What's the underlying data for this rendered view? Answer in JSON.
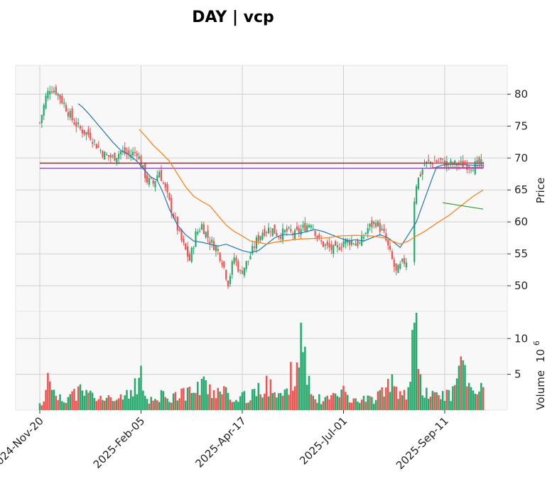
{
  "chart_data": {
    "type": "candlestick",
    "title": "DAY | vcp",
    "price_panel": {
      "ylabel": "Price",
      "yticks": [
        50,
        55,
        60,
        65,
        70,
        75,
        80
      ],
      "ylim": [
        46,
        84.5
      ],
      "grid": true
    },
    "volume_panel": {
      "ylabel": "Volume",
      "exponent_label": "10",
      "exponent_power": "6",
      "yticks": [
        5,
        10
      ],
      "ylim": [
        0,
        13.8
      ],
      "grid": true
    },
    "x_tick_labels": [
      "2024-Nov-20",
      "2025-Feb-05",
      "2025-Apr-17",
      "2025-Jul-01",
      "2025-Sep-11"
    ],
    "x_tick_index": [
      0,
      50,
      100,
      150,
      200
    ],
    "n_bars": 220,
    "closes_sampled": [
      [
        0,
        75.5
      ],
      [
        3,
        79.5
      ],
      [
        5,
        81.0
      ],
      [
        8,
        80.5
      ],
      [
        12,
        78.5
      ],
      [
        16,
        76.0
      ],
      [
        20,
        74.5
      ],
      [
        25,
        73.5
      ],
      [
        28,
        72.0
      ],
      [
        32,
        70.5
      ],
      [
        36,
        70.0
      ],
      [
        40,
        71.0
      ],
      [
        44,
        70.5
      ],
      [
        48,
        71.0
      ],
      [
        50,
        69.0
      ],
      [
        53,
        66.5
      ],
      [
        56,
        66.0
      ],
      [
        59,
        68.0
      ],
      [
        62,
        65.0
      ],
      [
        66,
        61.0
      ],
      [
        70,
        57.0
      ],
      [
        74,
        54.0
      ],
      [
        77,
        58.0
      ],
      [
        80,
        59.5
      ],
      [
        84,
        57.0
      ],
      [
        87,
        56.0
      ],
      [
        90,
        54.0
      ],
      [
        93,
        50.5
      ],
      [
        96,
        54.5
      ],
      [
        99,
        52.0
      ],
      [
        103,
        54.0
      ],
      [
        107,
        57.0
      ],
      [
        110,
        58.5
      ],
      [
        114,
        59.0
      ],
      [
        118,
        58.0
      ],
      [
        122,
        58.5
      ],
      [
        126,
        58.0
      ],
      [
        130,
        59.0
      ],
      [
        134,
        60.0
      ],
      [
        138,
        57.0
      ],
      [
        142,
        56.0
      ],
      [
        146,
        55.5
      ],
      [
        150,
        57.0
      ],
      [
        154,
        57.0
      ],
      [
        158,
        56.5
      ],
      [
        162,
        59.0
      ],
      [
        166,
        60.0
      ],
      [
        170,
        58.0
      ],
      [
        173,
        55.0
      ],
      [
        176,
        52.0
      ],
      [
        179,
        53.5
      ],
      [
        181,
        54.0
      ],
      [
        186,
        66.0
      ],
      [
        190,
        69.0
      ],
      [
        194,
        69.5
      ],
      [
        198,
        69.5
      ],
      [
        202,
        69.0
      ],
      [
        206,
        69.0
      ],
      [
        210,
        69.0
      ],
      [
        214,
        68.8
      ],
      [
        218,
        69.0
      ],
      [
        219,
        68.8
      ]
    ],
    "gap_bars": [
      182,
      183,
      184
    ],
    "volume_sampled": [
      [
        2,
        1.2
      ],
      [
        4,
        5.2
      ],
      [
        8,
        2.0
      ],
      [
        10,
        2.2
      ],
      [
        20,
        3.6
      ],
      [
        30,
        2.0
      ],
      [
        40,
        2.2
      ],
      [
        50,
        6.2
      ],
      [
        52,
        2.0
      ],
      [
        60,
        2.8
      ],
      [
        70,
        3.0
      ],
      [
        81,
        4.7
      ],
      [
        92,
        3.2
      ],
      [
        100,
        2.5
      ],
      [
        105,
        2.9
      ],
      [
        112,
        4.8
      ],
      [
        114,
        4.3
      ],
      [
        120,
        2.0
      ],
      [
        129,
        12.2
      ],
      [
        135,
        2.0
      ],
      [
        145,
        2.4
      ],
      [
        150,
        3.4
      ],
      [
        160,
        2.0
      ],
      [
        168,
        2.8
      ],
      [
        174,
        5.0
      ],
      [
        182,
        3.2
      ],
      [
        184,
        11.2
      ],
      [
        186,
        13.6
      ],
      [
        188,
        5.0
      ],
      [
        195,
        2.5
      ],
      [
        205,
        3.5
      ],
      [
        208,
        7.5
      ],
      [
        210,
        6.3
      ],
      [
        212,
        3.8
      ],
      [
        216,
        2.2
      ],
      [
        218,
        3.8
      ],
      [
        219,
        3.2
      ]
    ],
    "moving_average_1": [
      [
        19,
        78.5
      ],
      [
        21,
        78.0
      ],
      [
        24,
        77.0
      ],
      [
        28,
        75.5
      ],
      [
        32,
        74.0
      ],
      [
        36,
        72.5
      ],
      [
        40,
        71.2
      ],
      [
        44,
        70.5
      ],
      [
        48,
        69.5
      ],
      [
        52,
        68.0
      ],
      [
        55,
        67.0
      ],
      [
        58,
        66.5
      ],
      [
        61,
        64.5
      ],
      [
        64,
        62.0
      ],
      [
        68,
        59.5
      ],
      [
        72,
        58.0
      ],
      [
        76,
        57.0
      ],
      [
        80,
        56.8
      ],
      [
        84,
        56.5
      ],
      [
        88,
        56.2
      ],
      [
        92,
        56.5
      ],
      [
        96,
        56.0
      ],
      [
        100,
        55.5
      ],
      [
        104,
        55.2
      ],
      [
        108,
        55.5
      ],
      [
        112,
        56.5
      ],
      [
        116,
        57.5
      ],
      [
        120,
        58.0
      ],
      [
        124,
        58.0
      ],
      [
        128,
        58.2
      ],
      [
        132,
        58.5
      ],
      [
        136,
        58.8
      ],
      [
        140,
        58.5
      ],
      [
        144,
        58.0
      ],
      [
        148,
        57.5
      ],
      [
        152,
        57.0
      ],
      [
        156,
        57.2
      ],
      [
        160,
        57.0
      ],
      [
        164,
        57.5
      ],
      [
        168,
        58.0
      ],
      [
        172,
        57.5
      ],
      [
        176,
        56.5
      ],
      [
        178,
        56.0
      ],
      [
        182,
        58.0
      ],
      [
        186,
        60.0
      ],
      [
        190,
        63.5
      ],
      [
        194,
        67.0
      ],
      [
        196,
        68.6
      ],
      [
        200,
        69.0
      ],
      [
        206,
        69.0
      ],
      [
        212,
        68.9
      ],
      [
        219,
        68.8
      ]
    ],
    "moving_average_2": [
      [
        49,
        74.5
      ],
      [
        52,
        73.5
      ],
      [
        56,
        72.0
      ],
      [
        60,
        70.8
      ],
      [
        64,
        69.5
      ],
      [
        68,
        67.5
      ],
      [
        72,
        65.5
      ],
      [
        76,
        64.0
      ],
      [
        80,
        63.2
      ],
      [
        84,
        62.5
      ],
      [
        88,
        61.0
      ],
      [
        92,
        59.5
      ],
      [
        96,
        58.5
      ],
      [
        100,
        57.8
      ],
      [
        104,
        57.0
      ],
      [
        108,
        56.8
      ],
      [
        112,
        56.5
      ],
      [
        116,
        56.8
      ],
      [
        120,
        57.0
      ],
      [
        128,
        57.3
      ],
      [
        136,
        57.4
      ],
      [
        142,
        57.5
      ],
      [
        148,
        57.8
      ],
      [
        156,
        57.9
      ],
      [
        164,
        57.8
      ],
      [
        170,
        57.5
      ],
      [
        174,
        57.0
      ],
      [
        178,
        56.5
      ],
      [
        182,
        57.0
      ],
      [
        186,
        57.8
      ],
      [
        190,
        58.5
      ],
      [
        196,
        59.8
      ],
      [
        202,
        61.0
      ],
      [
        208,
        62.5
      ],
      [
        214,
        64.0
      ],
      [
        219,
        65.0
      ]
    ],
    "trend_line": [
      [
        199,
        63.0
      ],
      [
        219,
        62.0
      ]
    ],
    "horizontal_levels": [
      {
        "y": 69.2,
        "color": "#b22222"
      },
      {
        "y": 68.4,
        "color": "#8a4fb5"
      }
    ],
    "consolidation_box": {
      "x0": 194,
      "x1": 219,
      "y0": 68.5,
      "y1": 69.2,
      "color": "#e23b7a"
    },
    "colors": {
      "up": "#26a96c",
      "down": "#ef5350",
      "ma1": "#1f77b4",
      "ma2": "#ff7f0e",
      "trend": "#2ca02c",
      "panel_bg": "#f7f7f7",
      "grid": "#d0d0d0"
    }
  }
}
